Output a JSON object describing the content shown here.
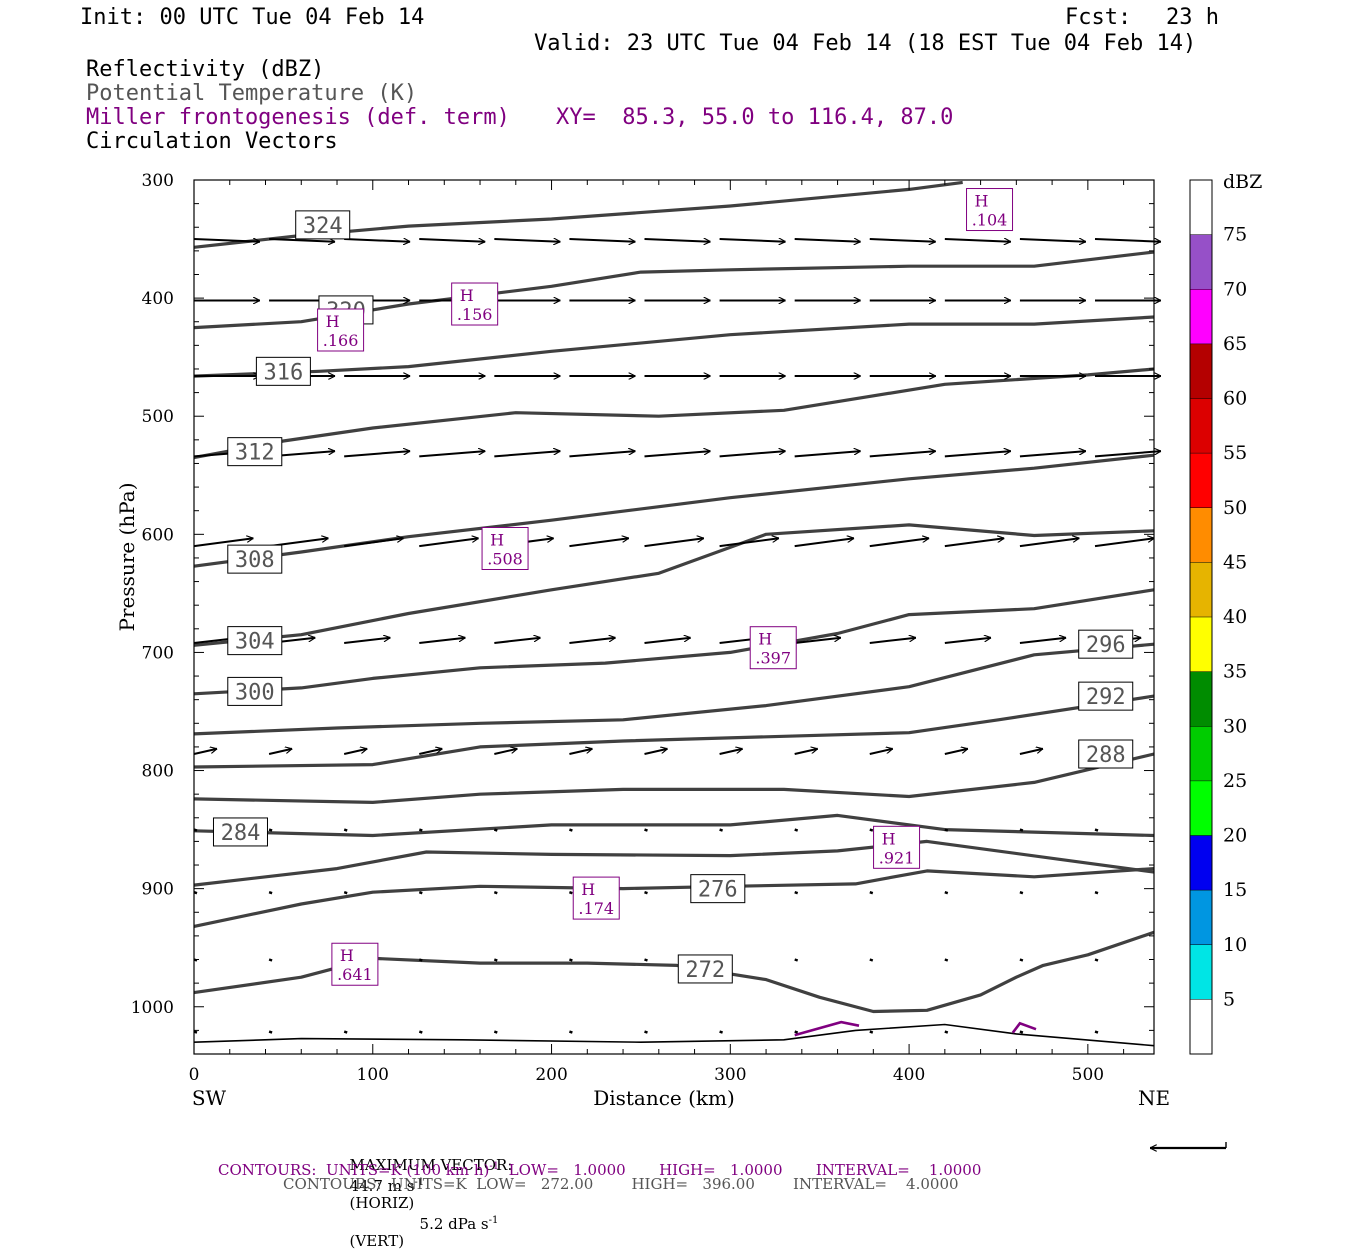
{
  "header": {
    "init": "Init: 00 UTC Tue 04 Feb 14",
    "fcst_label": "Fcst:",
    "fcst_value": "23 h",
    "valid": "Valid: 23 UTC Tue 04 Feb 14 (18 EST Tue 04 Feb 14)"
  },
  "legend_lines": {
    "reflectivity": "Reflectivity (dBZ)",
    "theta": "Potential Temperature (K)",
    "frontogenesis": "Miller frontogenesis (def. term)",
    "xy": "XY=  85.3, 55.0 to 116.4, 87.0",
    "vectors": "Circulation Vectors"
  },
  "footer": {
    "max_vector_label": "MAXIMUM VECTOR:",
    "max_vector_horiz": "44.7 m s",
    "max_vector_horiz_exp": "-1",
    "max_vector_horiz_unit": "(HORIZ)",
    "max_vector_vert": "5.2 dPa s",
    "max_vector_vert_exp": "-1",
    "max_vector_vert_unit": "(VERT)",
    "contours1": "CONTOURS:  UNITS=K (100 km h)",
    "contours1_exp": "-1",
    "contours1_rest": "  LOW=   1.0000       HIGH=   1.0000       INTERVAL=    1.0000",
    "contours2": "CONTOURS:  UNITS=K  LOW=   272.00        HIGH=   396.00        INTERVAL=    4.0000"
  },
  "colors": {
    "theta": "#404040",
    "frontogenesis": "#800080",
    "vector": "#000000",
    "axis": "#000000"
  },
  "chart_data": {
    "type": "cross-section",
    "xlabel": "Distance (km)",
    "ylabel": "Pressure (hPa)",
    "xlim": [
      0,
      537
    ],
    "ylim": [
      1040,
      300
    ],
    "x_ticks": [
      0,
      100,
      200,
      300,
      400,
      500
    ],
    "y_ticks": [
      300,
      400,
      500,
      600,
      700,
      800,
      900,
      1000
    ],
    "x_end_labels": {
      "left": "SW",
      "right": "NE"
    },
    "colorbar": {
      "title": "dBZ",
      "levels": [
        5,
        10,
        15,
        20,
        25,
        30,
        35,
        40,
        45,
        50,
        55,
        60,
        65,
        70,
        75
      ],
      "colors": [
        "#ffffff",
        "#00e5e5",
        "#0096e1",
        "#0000f0",
        "#00ff00",
        "#00cc00",
        "#008c00",
        "#ffff00",
        "#e6b400",
        "#ff8c00",
        "#ff0000",
        "#dc0000",
        "#b40000",
        "#ff00ff",
        "#9650c8"
      ]
    },
    "theta_contours": [
      {
        "value": 324,
        "label": "324",
        "label_at": [
          72,
          338
        ],
        "points": [
          [
            0,
            357
          ],
          [
            60,
            347
          ],
          [
            120,
            339
          ],
          [
            200,
            333
          ],
          [
            300,
            322
          ],
          [
            400,
            308
          ],
          [
            430,
            302
          ]
        ]
      },
      {
        "value": 320,
        "label": "320",
        "label_at": [
          85,
          410
        ],
        "points": [
          [
            0,
            425
          ],
          [
            60,
            420
          ],
          [
            120,
            405
          ],
          [
            200,
            390
          ],
          [
            250,
            378
          ],
          [
            300,
            376
          ],
          [
            400,
            373
          ],
          [
            470,
            373
          ],
          [
            537,
            361
          ]
        ]
      },
      {
        "value": 316,
        "label": "316",
        "label_at": [
          50,
          462
        ],
        "points": [
          [
            0,
            466
          ],
          [
            70,
            462
          ],
          [
            120,
            458
          ],
          [
            200,
            445
          ],
          [
            300,
            431
          ],
          [
            400,
            422
          ],
          [
            470,
            422
          ],
          [
            537,
            416
          ]
        ]
      },
      {
        "value": 312,
        "label": "312",
        "label_at": [
          34,
          530
        ],
        "points": [
          [
            0,
            535
          ],
          [
            50,
            521
          ],
          [
            100,
            510
          ],
          [
            180,
            497
          ],
          [
            260,
            500
          ],
          [
            330,
            495
          ],
          [
            420,
            473
          ],
          [
            500,
            465
          ],
          [
            537,
            460
          ]
        ]
      },
      {
        "value": 308,
        "label": "308",
        "label_at": [
          34,
          621
        ],
        "points": [
          [
            0,
            627
          ],
          [
            60,
            615
          ],
          [
            120,
            602
          ],
          [
            200,
            588
          ],
          [
            300,
            569
          ],
          [
            400,
            553
          ],
          [
            470,
            544
          ],
          [
            537,
            533
          ]
        ]
      },
      {
        "value": 304,
        "label": "304",
        "label_at": [
          34,
          690
        ],
        "points": [
          [
            0,
            694
          ],
          [
            60,
            685
          ],
          [
            120,
            667
          ],
          [
            200,
            647
          ],
          [
            260,
            633
          ],
          [
            320,
            600
          ],
          [
            400,
            592
          ],
          [
            470,
            601
          ],
          [
            537,
            597
          ]
        ]
      },
      {
        "value": 300,
        "label": "300",
        "label_at": [
          34,
          733
        ],
        "points": [
          [
            0,
            735
          ],
          [
            60,
            730
          ],
          [
            100,
            722
          ],
          [
            160,
            713
          ],
          [
            230,
            709
          ],
          [
            300,
            700
          ],
          [
            360,
            684
          ],
          [
            400,
            668
          ],
          [
            470,
            663
          ],
          [
            537,
            647
          ]
        ]
      },
      {
        "value": 296,
        "label": "296",
        "label_at": [
          510,
          693
        ],
        "points": [
          [
            0,
            769
          ],
          [
            80,
            764
          ],
          [
            160,
            760
          ],
          [
            240,
            757
          ],
          [
            320,
            745
          ],
          [
            400,
            729
          ],
          [
            470,
            702
          ],
          [
            537,
            693
          ]
        ]
      },
      {
        "value": 292,
        "label": "292",
        "label_at": [
          510,
          737
        ],
        "points": [
          [
            0,
            797
          ],
          [
            100,
            795
          ],
          [
            160,
            780
          ],
          [
            240,
            775
          ],
          [
            330,
            771
          ],
          [
            400,
            768
          ],
          [
            450,
            757
          ],
          [
            537,
            737
          ]
        ]
      },
      {
        "value": 288,
        "label": "288",
        "label_at": [
          510,
          786
        ],
        "points": [
          [
            0,
            824
          ],
          [
            100,
            827
          ],
          [
            160,
            820
          ],
          [
            240,
            816
          ],
          [
            330,
            816
          ],
          [
            400,
            822
          ],
          [
            470,
            810
          ],
          [
            537,
            786
          ]
        ]
      },
      {
        "value": 284,
        "label": "284",
        "label_at": [
          26,
          852
        ],
        "points": [
          [
            0,
            851
          ],
          [
            100,
            855
          ],
          [
            200,
            846
          ],
          [
            300,
            846
          ],
          [
            360,
            838
          ],
          [
            420,
            850
          ],
          [
            537,
            855
          ]
        ]
      },
      {
        "value": 280,
        "label": "",
        "label_at": null,
        "points": [
          [
            0,
            897
          ],
          [
            80,
            883
          ],
          [
            130,
            869
          ],
          [
            200,
            871
          ],
          [
            300,
            872
          ],
          [
            360,
            868
          ],
          [
            410,
            860
          ],
          [
            537,
            886
          ]
        ]
      },
      {
        "value": 276,
        "label": "276",
        "label_at": [
          293,
          900
        ],
        "points": [
          [
            0,
            932
          ],
          [
            60,
            913
          ],
          [
            100,
            903
          ],
          [
            160,
            898
          ],
          [
            240,
            900
          ],
          [
            300,
            898
          ],
          [
            370,
            896
          ],
          [
            410,
            885
          ],
          [
            470,
            890
          ],
          [
            537,
            883
          ]
        ]
      },
      {
        "value": 272,
        "label": "272",
        "label_at": [
          286,
          968
        ],
        "points": [
          [
            0,
            988
          ],
          [
            60,
            975
          ],
          [
            100,
            959
          ],
          [
            160,
            963
          ],
          [
            220,
            963
          ],
          [
            270,
            965
          ],
          [
            320,
            977
          ],
          [
            350,
            992
          ],
          [
            380,
            1004
          ],
          [
            410,
            1003
          ],
          [
            440,
            990
          ],
          [
            460,
            975
          ],
          [
            475,
            965
          ],
          [
            500,
            956
          ],
          [
            537,
            937
          ]
        ]
      }
    ],
    "ground_line": [
      [
        0,
        1030
      ],
      [
        60,
        1027
      ],
      [
        150,
        1028
      ],
      [
        250,
        1030
      ],
      [
        330,
        1028
      ],
      [
        370,
        1020
      ],
      [
        420,
        1015
      ],
      [
        460,
        1023
      ],
      [
        537,
        1033
      ]
    ],
    "frontogenesis_maxima": [
      {
        "label": "H",
        "value": ".104",
        "at": [
          445,
          325
        ]
      },
      {
        "label": "H",
        "value": ".156",
        "at": [
          157,
          405
        ]
      },
      {
        "label": "H",
        "value": ".166",
        "at": [
          82,
          427
        ]
      },
      {
        "label": "H",
        "value": ".508",
        "at": [
          174,
          612
        ]
      },
      {
        "label": "H",
        "value": ".397",
        "at": [
          324,
          696
        ]
      },
      {
        "label": "H",
        "value": ".921",
        "at": [
          393,
          865
        ]
      },
      {
        "label": "H",
        "value": ".174",
        "at": [
          225,
          908
        ]
      },
      {
        "label": "H",
        "value": ".641",
        "at": [
          90,
          964
        ]
      }
    ],
    "frontogenesis_contours": [
      {
        "value": 1.0,
        "points": [
          [
            336,
            1024
          ],
          [
            362,
            1013
          ],
          [
            372,
            1016
          ]
        ]
      },
      {
        "value": 1.0,
        "points": [
          [
            458,
            1022
          ],
          [
            462,
            1014
          ],
          [
            471,
            1019
          ]
        ]
      }
    ],
    "vector_rows": [
      {
        "p": 350,
        "u": 1.0,
        "w": 0.01
      },
      {
        "p": 402,
        "u": 1.0,
        "w": 0.0
      },
      {
        "p": 466,
        "u": 1.0,
        "w": 0.0
      },
      {
        "p": 534,
        "u": 1.0,
        "w": -0.02
      },
      {
        "p": 610,
        "u": 0.9,
        "w": -0.03
      },
      {
        "p": 692,
        "u": 0.7,
        "w": -0.02
      },
      {
        "p": 786,
        "u": 0.35,
        "w": -0.02
      },
      {
        "p": 850,
        "u": 0.05,
        "w": 0.0
      },
      {
        "p": 903,
        "u": 0.03,
        "w": 0.0
      },
      {
        "p": 960,
        "u": 0.02,
        "w": 0.0
      },
      {
        "p": 1021,
        "u": 0.03,
        "w": 0.0
      }
    ],
    "vector_x": [
      0,
      42,
      84,
      126,
      168,
      210,
      252,
      294,
      336,
      378,
      420,
      462,
      504
    ],
    "reference_vector": {
      "direction": "left"
    }
  }
}
